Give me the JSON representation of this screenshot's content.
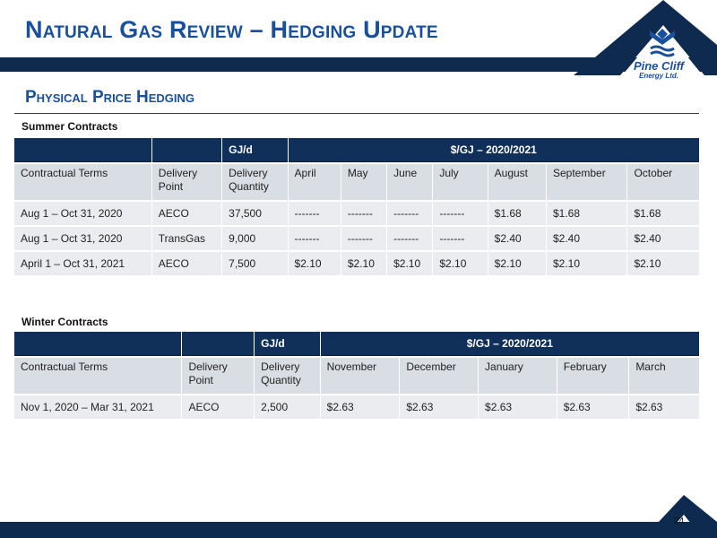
{
  "header": {
    "title": "Natural Gas Review – Hedging Update",
    "logo_line1": "Pine Cliff",
    "logo_line2": "Energy Ltd."
  },
  "subtitle": "Physical Price Hedging",
  "summer": {
    "label": "Summer Contracts",
    "header_row": [
      "",
      "",
      "GJ/d",
      "$/GJ – 2020/2021"
    ],
    "columns": [
      "Contractual Terms",
      "Delivery Point",
      "Delivery Quantity",
      "April",
      "May",
      "June",
      "July",
      "August",
      "September",
      "October"
    ],
    "rows": [
      [
        "Aug 1 – Oct 31, 2020",
        "AECO",
        "37,500",
        "-------",
        "-------",
        "-------",
        "-------",
        "$1.68",
        "$1.68",
        "$1.68"
      ],
      [
        "Aug 1 – Oct 31, 2020",
        "TransGas",
        "9,000",
        "-------",
        "-------",
        "-------",
        "-------",
        "$2.40",
        "$2.40",
        "$2.40"
      ],
      [
        "April 1 – Oct 31, 2021",
        "AECO",
        "7,500",
        "$2.10",
        "$2.10",
        "$2.10",
        "$2.10",
        "$2.10",
        "$2.10",
        "$2.10"
      ]
    ]
  },
  "winter": {
    "label": "Winter Contracts",
    "header_row": [
      "",
      "",
      "GJ/d",
      "$/GJ – 2020/2021"
    ],
    "columns": [
      "Contractual Terms",
      "Delivery Point",
      "Delivery Quantity",
      "November",
      "December",
      "January",
      "February",
      "March"
    ],
    "rows": [
      [
        "Nov 1, 2020 – Mar 31, 2021",
        "AECO",
        "2,500",
        "$2.63",
        "$2.63",
        "$2.63",
        "$2.63",
        "$2.63"
      ]
    ]
  },
  "page_number": "24",
  "colors": {
    "title_blue": "#1a4f9c",
    "navy": "#0f2a4f",
    "header_cell": "#10305a",
    "subheader_cell": "#d9dde4",
    "row_cell": "#eaecef"
  }
}
